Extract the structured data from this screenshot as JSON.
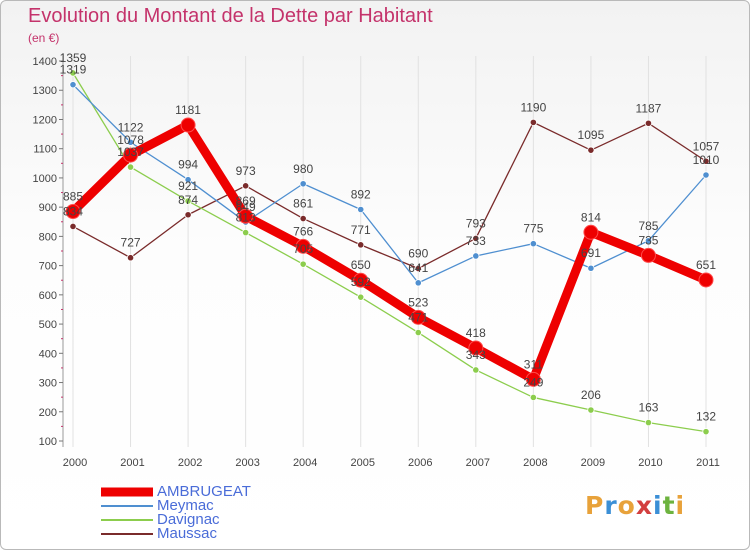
{
  "header": {
    "title": "Evolution du Montant de la Dette par Habitant",
    "subtitle": "(en €)"
  },
  "logo": {
    "letters": [
      "P",
      "r",
      "o",
      "x",
      "i",
      "t",
      "i"
    ],
    "colors": [
      "#e8a23a",
      "#3b8fd6",
      "#e8a23a",
      "#d33f3f",
      "#3b8fd6",
      "#6db33f",
      "#e8a23a"
    ]
  },
  "chart_data": {
    "type": "line",
    "x": [
      "2000",
      "2001",
      "2002",
      "2003",
      "2004",
      "2005",
      "2006",
      "2007",
      "2008",
      "2009",
      "2010",
      "2011"
    ],
    "ylim": [
      100,
      1400
    ],
    "yticks": [
      100,
      200,
      300,
      400,
      500,
      600,
      700,
      800,
      900,
      1000,
      1100,
      1200,
      1300,
      1400
    ],
    "legend_position": "bottom-left",
    "series": [
      {
        "name": "AMBRUGEAT",
        "color": "#ee0000",
        "values": [
          885,
          1078,
          1181,
          869,
          766,
          650,
          523,
          418,
          311,
          814,
          735,
          651
        ]
      },
      {
        "name": "Meymac",
        "color": "#4f8fd0",
        "values": [
          1319,
          1122,
          994,
          849,
          980,
          892,
          641,
          733,
          775,
          691,
          785,
          1010
        ]
      },
      {
        "name": "Davignac",
        "color": "#8ccd4d",
        "values": [
          1359,
          1037,
          921,
          813,
          705,
          592,
          471,
          343,
          249,
          206,
          163,
          132
        ]
      },
      {
        "name": "Maussac",
        "color": "#7a2b2b",
        "values": [
          834,
          727,
          874,
          973,
          861,
          771,
          690,
          793,
          1190,
          1095,
          1187,
          1057
        ]
      }
    ]
  }
}
